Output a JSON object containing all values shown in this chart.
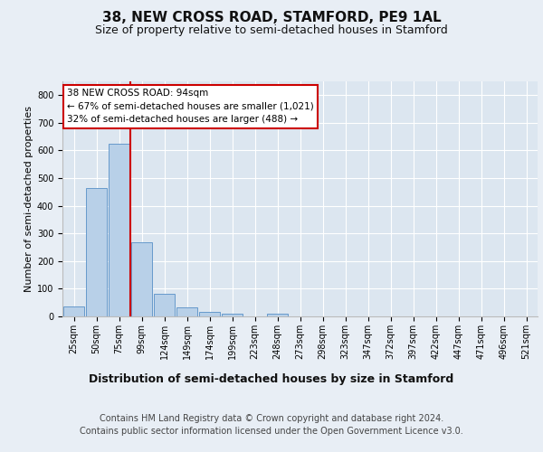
{
  "title": "38, NEW CROSS ROAD, STAMFORD, PE9 1AL",
  "subtitle": "Size of property relative to semi-detached houses in Stamford",
  "xlabel": "Distribution of semi-detached houses by size in Stamford",
  "ylabel": "Number of semi-detached properties",
  "bin_labels": [
    "25sqm",
    "50sqm",
    "75sqm",
    "99sqm",
    "124sqm",
    "149sqm",
    "174sqm",
    "199sqm",
    "223sqm",
    "248sqm",
    "273sqm",
    "298sqm",
    "323sqm",
    "347sqm",
    "372sqm",
    "397sqm",
    "422sqm",
    "447sqm",
    "471sqm",
    "496sqm",
    "521sqm"
  ],
  "bar_values": [
    35,
    465,
    625,
    268,
    82,
    33,
    15,
    11,
    0,
    11,
    0,
    0,
    0,
    0,
    0,
    0,
    0,
    0,
    0,
    0,
    0
  ],
  "bar_color": "#b8d0e8",
  "bar_edge_color": "#6699cc",
  "vline_color": "#cc0000",
  "annotation_text": "38 NEW CROSS ROAD: 94sqm\n← 67% of semi-detached houses are smaller (1,021)\n32% of semi-detached houses are larger (488) →",
  "annotation_box_color": "#ffffff",
  "annotation_box_edge": "#cc0000",
  "background_color": "#e8eef5",
  "plot_bg_color": "#dce6f0",
  "grid_color": "#ffffff",
  "ylim": [
    0,
    850
  ],
  "yticks": [
    0,
    100,
    200,
    300,
    400,
    500,
    600,
    700,
    800
  ],
  "footer_line1": "Contains HM Land Registry data © Crown copyright and database right 2024.",
  "footer_line2": "Contains public sector information licensed under the Open Government Licence v3.0.",
  "title_fontsize": 11,
  "subtitle_fontsize": 9,
  "tick_fontsize": 7,
  "ylabel_fontsize": 8,
  "xlabel_fontsize": 9,
  "annotation_fontsize": 7.5,
  "footer_fontsize": 7
}
